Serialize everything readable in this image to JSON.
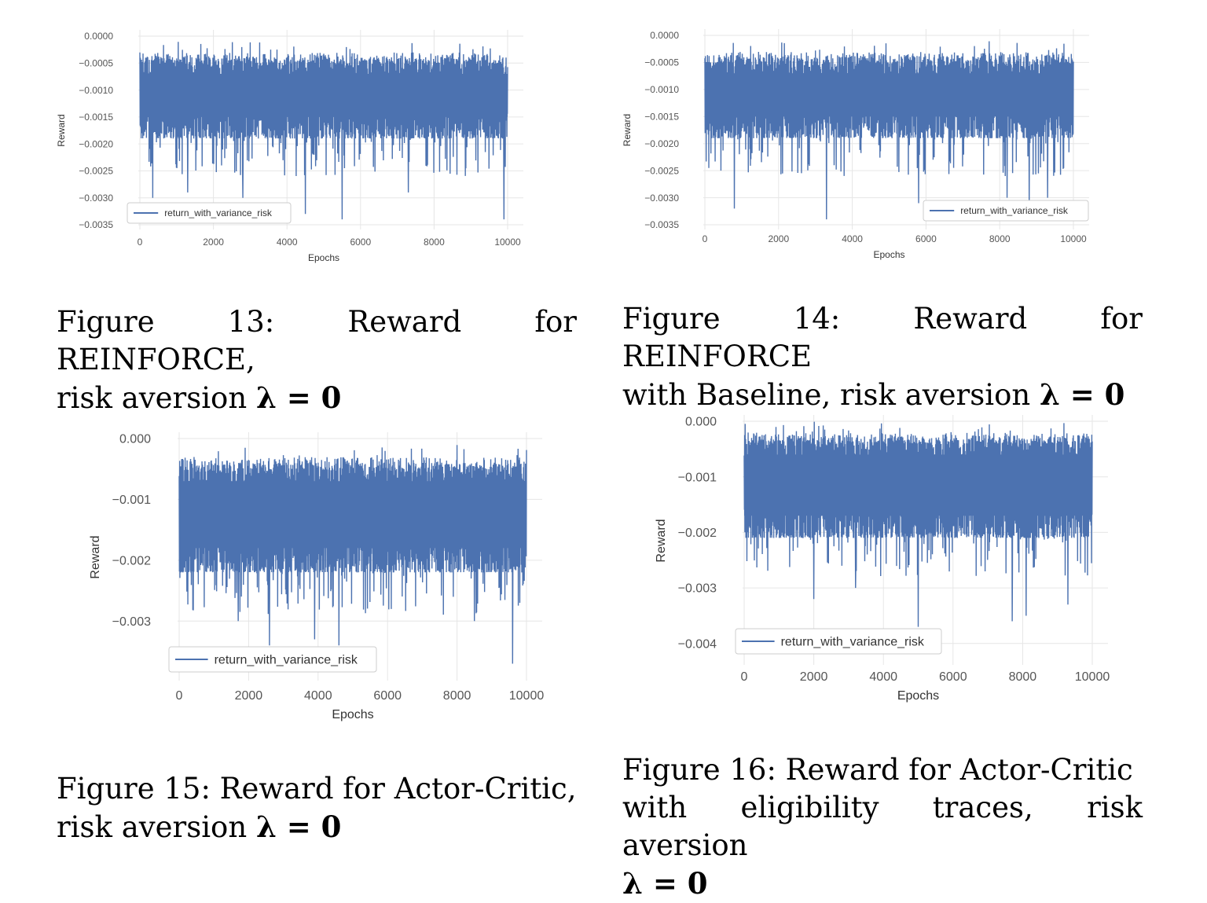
{
  "chart_data": [
    {
      "type": "line",
      "xlabel": "Epochs",
      "ylabel": "Reward",
      "x_ticks": [
        "0",
        "2000",
        "4000",
        "6000",
        "8000",
        "10000"
      ],
      "y_ticks": [
        "0.0000",
        "−0.0005",
        "−0.0010",
        "−0.0015",
        "−0.0020",
        "−0.0025",
        "−0.0030",
        "−0.0035"
      ],
      "xlim": [
        0,
        10000
      ],
      "ylim": [
        -0.0035,
        0.0
      ],
      "legend": "lower-left",
      "grid": true,
      "series": [
        {
          "name": "return_with_variance_risk",
          "color": "#4c72b0",
          "upper_envelope": -0.0003,
          "lower_envelope": -0.0019,
          "center": -0.0011,
          "spikes": [
            [
              350,
              -0.003
            ],
            [
              1300,
              -0.0029
            ],
            [
              2800,
              -0.003
            ],
            [
              4500,
              -0.0033
            ],
            [
              5500,
              -0.0034
            ],
            [
              7300,
              -0.0029
            ],
            [
              9900,
              -0.0034
            ]
          ]
        }
      ],
      "caption": {
        "line1": "Figure 13: Reward for REINFORCE,",
        "line2_prefix": "risk aversion ",
        "line2_math": "λ = 0"
      }
    },
    {
      "type": "line",
      "xlabel": "Epochs",
      "ylabel": "Reward",
      "x_ticks": [
        "0",
        "2000",
        "4000",
        "6000",
        "8000",
        "10000"
      ],
      "y_ticks": [
        "0.0000",
        "−0.0005",
        "−0.0010",
        "−0.0015",
        "−0.0020",
        "−0.0025",
        "−0.0030",
        "−0.0035"
      ],
      "xlim": [
        0,
        10000
      ],
      "ylim": [
        -0.0035,
        0.0
      ],
      "legend": "lower-right",
      "grid": true,
      "series": [
        {
          "name": "return_with_variance_risk",
          "color": "#4c72b0",
          "upper_envelope": -0.0003,
          "lower_envelope": -0.0019,
          "center": -0.0011,
          "spikes": [
            [
              800,
              -0.0032
            ],
            [
              3300,
              -0.0034
            ],
            [
              5800,
              -0.0031
            ],
            [
              8200,
              -0.003
            ],
            [
              8800,
              -0.0032
            ],
            [
              9300,
              -0.003
            ]
          ]
        }
      ],
      "caption": {
        "line1": "Figure 14: Reward for REINFORCE",
        "line2_prefix": "with Baseline, risk aversion ",
        "line2_math": "λ = 0"
      }
    },
    {
      "type": "line",
      "xlabel": "Epochs",
      "ylabel": "Reward",
      "x_ticks": [
        "0",
        "2000",
        "4000",
        "6000",
        "8000",
        "10000"
      ],
      "y_ticks": [
        "0.000",
        "−0.001",
        "−0.002",
        "−0.003"
      ],
      "xlim": [
        0,
        10000
      ],
      "ylim": [
        -0.0039,
        0.0
      ],
      "legend": "lower-left",
      "grid": true,
      "series": [
        {
          "name": "return_with_variance_risk",
          "color": "#4c72b0",
          "upper_envelope": -0.0003,
          "lower_envelope": -0.0022,
          "center": -0.0012,
          "spikes": [
            [
              1700,
              -0.003
            ],
            [
              2600,
              -0.0034
            ],
            [
              3900,
              -0.0033
            ],
            [
              4600,
              -0.0034
            ],
            [
              8500,
              -0.003
            ],
            [
              9600,
              -0.0037
            ]
          ]
        }
      ],
      "caption": {
        "line1": "Figure 15: Reward for Actor-Critic,",
        "line2_prefix": "risk aversion ",
        "line2_math": "λ = 0"
      }
    },
    {
      "type": "line",
      "xlabel": "Epochs",
      "ylabel": "Reward",
      "x_ticks": [
        "0",
        "2000",
        "4000",
        "6000",
        "8000",
        "10000"
      ],
      "y_ticks": [
        "0.000",
        "−0.001",
        "−0.002",
        "−0.003",
        "−0.004"
      ],
      "xlim": [
        0,
        10000
      ],
      "ylim": [
        -0.0043,
        0.0
      ],
      "legend": "lower-left",
      "grid": true,
      "series": [
        {
          "name": "return_with_variance_risk",
          "color": "#4c72b0",
          "upper_envelope": -0.0002,
          "lower_envelope": -0.0021,
          "center": -0.0011,
          "spikes": [
            [
              2000,
              -0.0032
            ],
            [
              3200,
              -0.003
            ],
            [
              5000,
              -0.0037
            ],
            [
              7700,
              -0.0036
            ],
            [
              8100,
              -0.0035
            ],
            [
              9300,
              -0.0033
            ]
          ]
        }
      ],
      "caption": {
        "line1": "Figure 16: Reward for Actor-Critic",
        "line2_prefix": "with eligibility traces, risk aversion",
        "line2_math": "λ = 0"
      }
    }
  ]
}
